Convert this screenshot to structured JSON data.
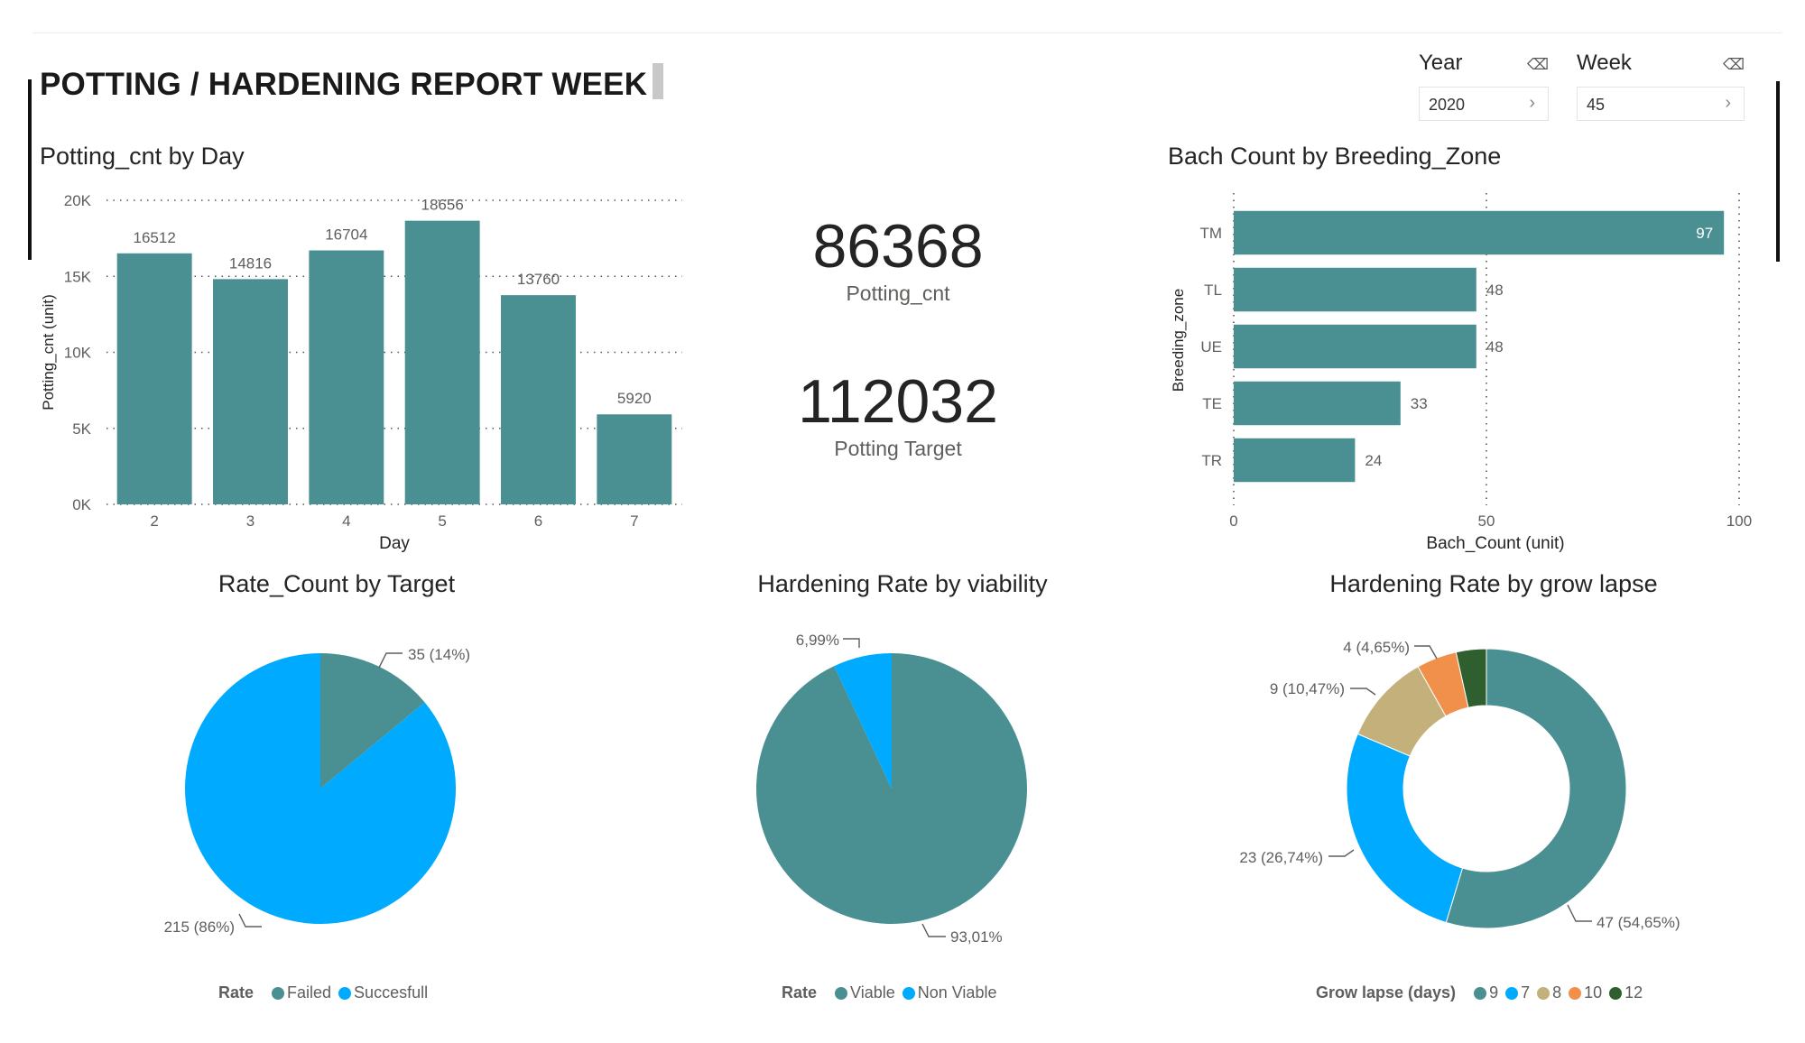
{
  "report": {
    "title": "POTTING / HARDENING REPORT WEEK"
  },
  "slicers": {
    "year": {
      "label": "Year",
      "value": "2020",
      "icon": "eraser-icon"
    },
    "week": {
      "label": "Week",
      "value": "45",
      "icon": "eraser-icon"
    }
  },
  "kpis": {
    "potting_cnt": {
      "value": "86368",
      "label": "Potting_cnt"
    },
    "potting_target": {
      "value": "112032",
      "label": "Potting Target"
    }
  },
  "colors": {
    "teal": "#4a8f92",
    "blue": "#00aaff",
    "tan": "#c4b07a",
    "orange": "#f0904a",
    "darkgreen": "#2f5e2f"
  },
  "chart_data": [
    {
      "type": "bar",
      "title": "Potting_cnt by Day",
      "xlabel": "Day",
      "ylabel": "Potting_cnt (unit)",
      "categories": [
        "2",
        "3",
        "4",
        "5",
        "6",
        "7"
      ],
      "values": [
        16512,
        14816,
        16704,
        18656,
        13760,
        5920
      ],
      "ylim": [
        0,
        20000
      ],
      "yticks": [
        "0K",
        "5K",
        "10K",
        "15K",
        "20K"
      ],
      "grid": true
    },
    {
      "type": "bar",
      "orientation": "horizontal",
      "title": "Bach Count by Breeding_Zone",
      "xlabel": "Bach_Count (unit)",
      "ylabel": "Breeding_zone",
      "categories": [
        "TM",
        "TL",
        "UE",
        "TE",
        "TR"
      ],
      "values": [
        97,
        48,
        48,
        33,
        24
      ],
      "xlim": [
        0,
        100
      ],
      "xticks": [
        "0",
        "50",
        "100"
      ],
      "grid": true
    },
    {
      "type": "pie",
      "title": "Rate_Count by Target",
      "legend_title": "Rate",
      "slices": [
        {
          "name": "Failed",
          "value": 35,
          "label": "35 (14%)",
          "color": "#4a8f92"
        },
        {
          "name": "Succesfull",
          "value": 215,
          "label": "215 (86%)",
          "color": "#00aaff"
        }
      ]
    },
    {
      "type": "pie",
      "title": "Hardening Rate by viability",
      "legend_title": "Rate",
      "slices": [
        {
          "name": "Viable",
          "value": 93.01,
          "label": "93,01%",
          "color": "#4a8f92"
        },
        {
          "name": "Non Viable",
          "value": 6.99,
          "label": "6,99%",
          "color": "#00aaff"
        }
      ]
    },
    {
      "type": "donut",
      "title": "Hardening Rate by grow lapse",
      "legend_title": "Grow lapse (days)",
      "slices": [
        {
          "name": "9",
          "value": 47,
          "label": "47 (54,65%)",
          "color": "#4a8f92"
        },
        {
          "name": "7",
          "value": 23,
          "label": "23 (26,74%)",
          "color": "#00aaff"
        },
        {
          "name": "8",
          "value": 9,
          "label": "9 (10,47%)",
          "color": "#c4b07a"
        },
        {
          "name": "10",
          "value": 4,
          "label": "4 (4,65%)",
          "color": "#f0904a"
        },
        {
          "name": "12",
          "value": 3,
          "label": "",
          "color": "#2f5e2f"
        }
      ]
    }
  ]
}
